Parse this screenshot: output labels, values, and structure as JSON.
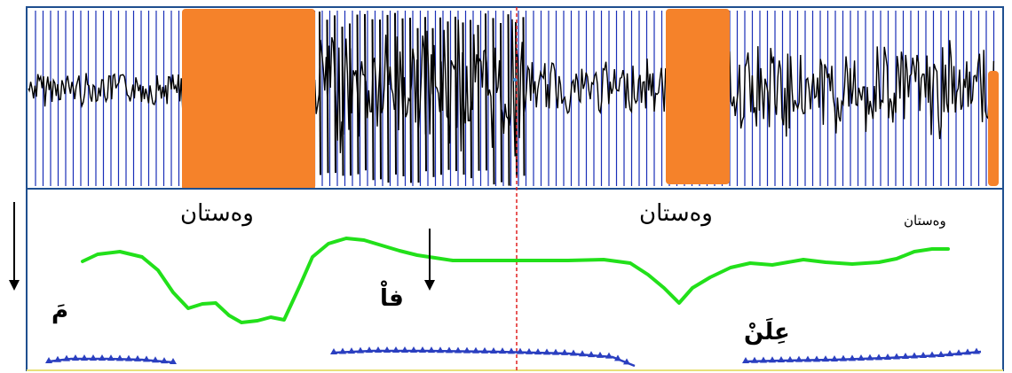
{
  "labels": {
    "word_1": "وەستان",
    "word_2": "وەستان",
    "word_3": "وەستان"
  },
  "marks": {
    "mark_1": "مَ",
    "mark_2": "فاْ",
    "mark_3": "عِلَنْ"
  },
  "colors": {
    "frame": "#1f4f8f",
    "waveform": "#000000",
    "grid_line": "#1a2fb8",
    "redaction": "#f5822a",
    "cursor": "#e02020",
    "pitch": "#22e01a",
    "intensity": "#2a3fc0",
    "arrow": "#000000"
  },
  "icons": {
    "arrow": "down-arrow-icon"
  }
}
